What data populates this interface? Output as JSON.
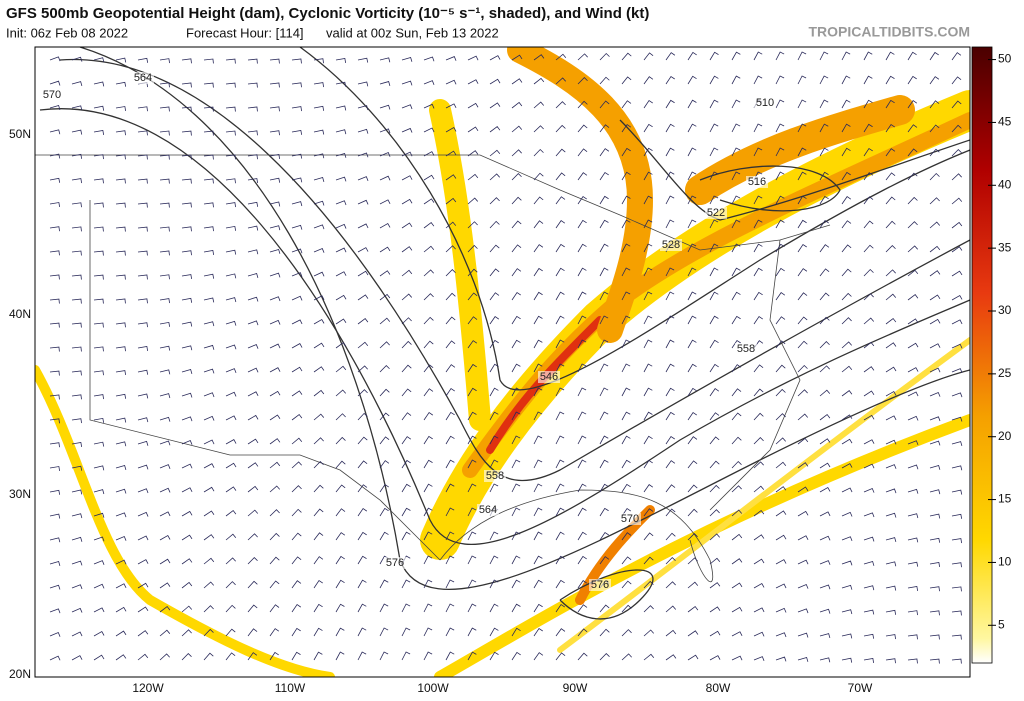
{
  "header": {
    "title": "GFS 500mb Geopotential Height (dam), Cyclonic Vorticity (10⁻⁵ s⁻¹, shaded), and Wind (kt)",
    "init": "Init: 06z Feb 08 2022",
    "forecast_hour": "Forecast Hour: [114]",
    "valid": "valid at 00z Sun, Feb 13 2022",
    "site": "TROPICALTIDBITS.COM"
  },
  "map": {
    "lat_labels": [
      "50N",
      "40N",
      "30N",
      "20N"
    ],
    "lon_labels": [
      "120W",
      "110W",
      "100W",
      "90W",
      "80W",
      "70W"
    ],
    "contour_labels": [
      564,
      570,
      510,
      516,
      522,
      528,
      546,
      558,
      558,
      564,
      576,
      570,
      576
    ]
  },
  "colorbar": {
    "range": [
      2,
      51
    ],
    "ticks": [
      5,
      10,
      15,
      20,
      25,
      30,
      35,
      40,
      45,
      50
    ]
  }
}
